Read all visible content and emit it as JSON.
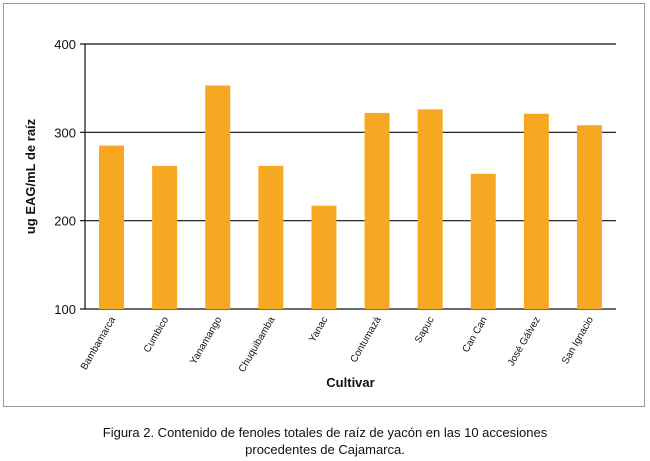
{
  "chart_data": {
    "type": "bar",
    "title": "",
    "xlabel": "Cultivar",
    "ylabel": "ug EAG/mL de raíz",
    "ylim": [
      100,
      400
    ],
    "yticks": [
      100,
      200,
      300,
      400
    ],
    "grid": true,
    "bar_color": "#F7A823",
    "categories": [
      "Bambamarca",
      "Cumbico",
      "Yanamango",
      "Chuquibamba",
      "Yanac",
      "Contumazá",
      "Sapuc",
      "Can Can",
      "José Gálvez",
      "San Ignacio"
    ],
    "values": [
      285,
      262,
      353,
      262,
      217,
      322,
      326,
      253,
      321,
      308
    ]
  },
  "caption": {
    "line1": "Figura 2. Contenido de fenoles totales de raíz de yacón en las 10 accesiones",
    "line2": "procedentes de Cajamarca."
  }
}
